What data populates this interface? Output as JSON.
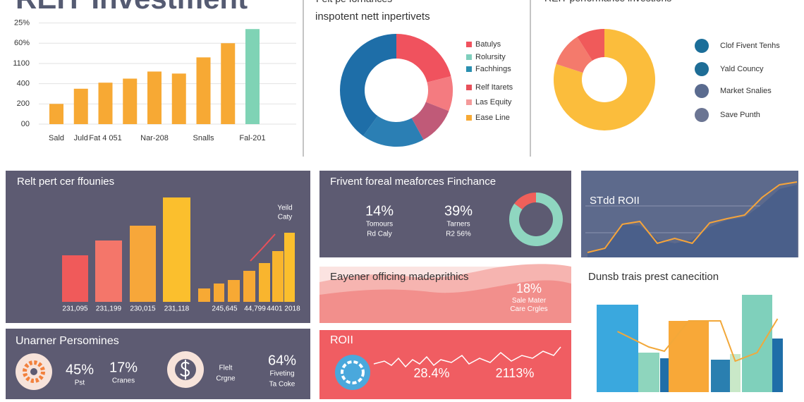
{
  "title": "REIT Investment",
  "chart_data": [
    {
      "type": "bar",
      "categories": [
        "Sald",
        "Juld",
        "Fat 4 051",
        null,
        "Nar-208",
        null,
        "Snalls",
        null,
        "Fal-201"
      ],
      "values": [
        1.0,
        1.75,
        2.05,
        2.25,
        2.6,
        2.5,
        3.3,
        4.0,
        4.7
      ],
      "colors": [
        "#f7a934",
        "#f7a934",
        "#f7a934",
        "#f7a934",
        "#f7a934",
        "#f7a934",
        "#f7a934",
        "#f7a934",
        "#7fd3b5"
      ],
      "ylim": [
        0,
        5.3
      ],
      "yticks": [
        {
          "value": 0,
          "label": "00"
        },
        {
          "value": 1,
          "label": "200"
        },
        {
          "value": 2,
          "label": "400"
        },
        {
          "value": 3,
          "label": "1100"
        },
        {
          "value": 4,
          "label": "60%"
        },
        {
          "value": 5,
          "label": "25%"
        }
      ],
      "grid": true
    },
    {
      "type": "pie",
      "title": "Felt pe fornances",
      "subtitle": "inspotent nett inpertivets",
      "values": [
        21,
        10,
        11,
        18,
        40
      ],
      "colors": [
        "#f0525e",
        "#f47b80",
        "#c05a78",
        "#2b7fb4",
        "#1e6ea8"
      ],
      "legend": [
        {
          "name": "Batulys",
          "color": "#f0525e"
        },
        {
          "name": "Rolursity",
          "color": "#7ecfbd"
        },
        {
          "name": "Fachhings",
          "color": "#2a8fb0"
        },
        {
          "name": "Relf Itarets",
          "color": "#e8505a"
        },
        {
          "name": "Las Equity",
          "color": "#f49a9a"
        },
        {
          "name": "Ease Line",
          "color": "#f7a934"
        }
      ]
    },
    {
      "type": "pie",
      "title": "REIT performance investions",
      "values": [
        80,
        11,
        9
      ],
      "colors": [
        "#fbbd3c",
        "#f47a6c",
        "#f05a5a"
      ],
      "legend": [
        {
          "name": "Clof Fivent Tenhs",
          "color": "#1b6e99"
        },
        {
          "name": "Yald Councy",
          "color": "#1e6d96"
        },
        {
          "name": "Market Snalies",
          "color": "#5a6b8f"
        },
        {
          "name": "Save Punth",
          "color": "#6b7593"
        }
      ]
    },
    {
      "type": "bar",
      "title": "Relt pert cer ffounies",
      "categories": [
        "231,095",
        "231,199",
        "230,015",
        "231,118",
        null,
        "245,645",
        null,
        "44,799",
        null,
        "4401 2018",
        null
      ],
      "values": [
        66,
        87,
        108,
        148,
        19,
        26,
        31,
        44,
        55,
        72,
        98
      ],
      "colors": [
        "#f05a5a",
        "#f4766a",
        "#f7a73a",
        "#fbbf2d",
        "#f7a934",
        "#f7a934",
        "#f7a934",
        "#f7a934",
        "#f9b52e",
        "#f9b52e",
        "#fbbf2d"
      ],
      "ylim": [
        0,
        170
      ],
      "annotation": [
        "Yeild",
        "Caty"
      ]
    },
    {
      "type": "pie",
      "title": "Frivent foreal meaforces Finchance",
      "values": [
        85,
        15
      ],
      "colors": [
        "#8fd6c0",
        "#f0605a"
      ],
      "stats": [
        {
          "label": "14%",
          "lines": [
            "Tomours",
            "Rd Caly"
          ]
        },
        {
          "label": "39%",
          "lines": [
            "Tarners",
            "R2 56%"
          ]
        }
      ]
    },
    {
      "type": "stats",
      "title": "Eayener officing madeprithics",
      "stats": [
        {
          "label": "18%",
          "lines": [
            "Sale Mater",
            "Care Crgles"
          ]
        }
      ]
    },
    {
      "type": "stats",
      "title": "ROII",
      "stats": [
        {
          "label": "28.4%",
          "lines": []
        },
        {
          "label": "2113%",
          "lines": []
        }
      ]
    },
    {
      "type": "line",
      "title": "STdd ROII",
      "categories": [
        null,
        null,
        null,
        null,
        null,
        null,
        null,
        null,
        null,
        null,
        null,
        null,
        null
      ],
      "ylim": [
        0,
        110
      ],
      "series": [
        {
          "kind": "area",
          "color": "#4a5f8a",
          "values": [
            7,
            15,
            47,
            45,
            25,
            20,
            25,
            43,
            53,
            57,
            75,
            97,
            103
          ]
        },
        {
          "kind": "line",
          "color": "#f6a43a",
          "values": [
            7,
            13,
            47,
            51,
            20,
            27,
            20,
            49,
            55,
            60,
            85,
            103,
            107
          ]
        }
      ]
    },
    {
      "type": "combo",
      "title": "Dunsb trais prest canecition",
      "ylim": [
        0,
        150
      ],
      "values": [
        124,
        56,
        48,
        101,
        46,
        54,
        138,
        76
      ],
      "colors": [
        "#3aa8de",
        "#8ed5bd",
        "#1f6ea8",
        "#f8a838",
        "#2a7fb0",
        "#c9e8c8",
        "#7fd0bb",
        "#1f6ea8"
      ],
      "line": {
        "color": "#f2a83a",
        "values": [
          86,
          64,
          58,
          101,
          101,
          44,
          56,
          104
        ]
      }
    },
    {
      "type": "stats",
      "title": "Unarner Persomines",
      "stats": [
        {
          "label": "45%",
          "lines": [
            "Pst"
          ]
        },
        {
          "label": "17%",
          "lines": [
            "Cranes"
          ]
        },
        {
          "label": null,
          "lines": [
            "Flelt",
            "Crgne"
          ]
        },
        {
          "label": "64%",
          "lines": [
            "Fiveting",
            "Ta Coke"
          ]
        }
      ]
    }
  ]
}
